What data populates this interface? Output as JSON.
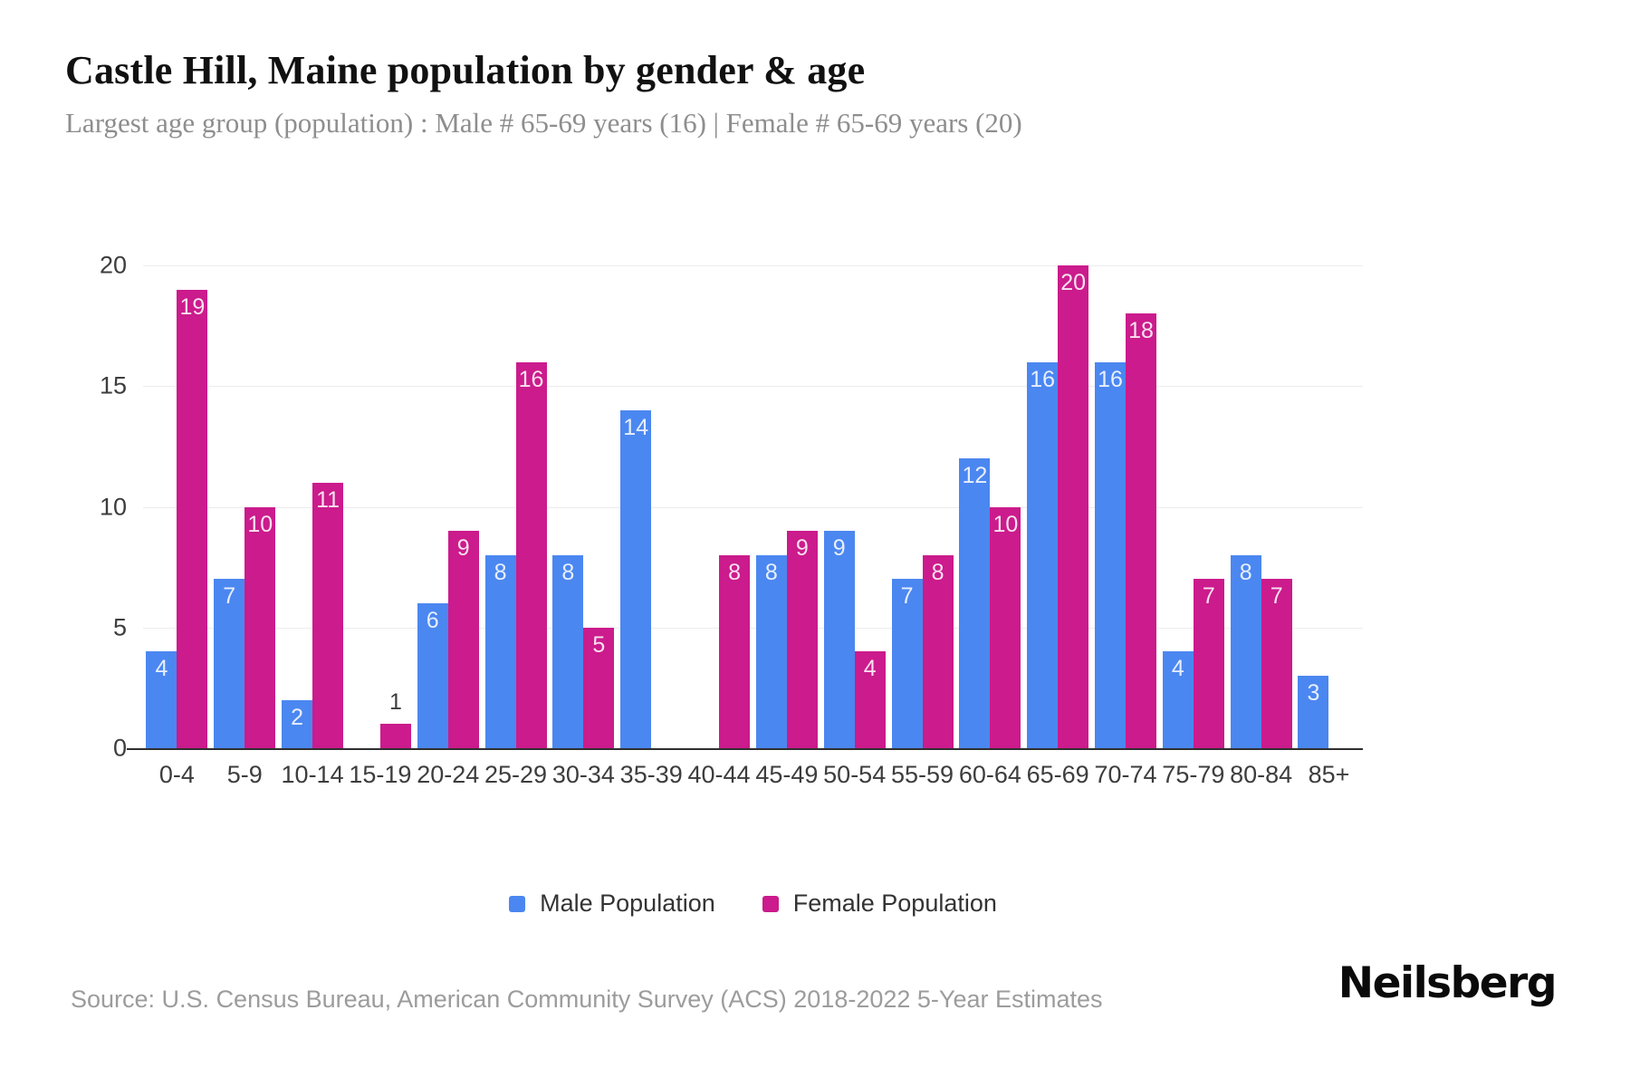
{
  "page": {
    "title": "Castle Hill, Maine population by gender & age",
    "subtitle": "Largest age group (population) : Male # 65-69 years (16) | Female # 65-69 years (20)",
    "source": "Source: U.S. Census Bureau, American Community Survey (ACS) 2018-2022 5-Year Estimates",
    "brand": "Neilsberg"
  },
  "chart_data": {
    "type": "bar",
    "title": "Castle Hill, Maine population by gender & age",
    "categories": [
      "0-4",
      "5-9",
      "10-14",
      "15-19",
      "20-24",
      "25-29",
      "30-34",
      "35-39",
      "40-44",
      "45-49",
      "50-54",
      "55-59",
      "60-64",
      "65-69",
      "70-74",
      "75-79",
      "80-84",
      "85+"
    ],
    "series": [
      {
        "name": "Male Population",
        "color": "#4b87f0",
        "values": [
          4,
          7,
          2,
          0,
          6,
          8,
          8,
          14,
          0,
          8,
          9,
          7,
          12,
          16,
          16,
          4,
          8,
          3
        ]
      },
      {
        "name": "Female Population",
        "color": "#cb1b8c",
        "values": [
          19,
          10,
          11,
          1,
          9,
          16,
          5,
          0,
          8,
          9,
          4,
          8,
          10,
          20,
          18,
          7,
          7,
          0
        ]
      }
    ],
    "xlabel": "",
    "ylabel": "",
    "ylim": [
      0,
      20
    ],
    "yticks": [
      0,
      5,
      10,
      15,
      20
    ],
    "grid": true,
    "legend_position": "bottom",
    "bar_label_color": "rgba(255,255,255,0.87)",
    "small_bar_label_color": "#3d3d3d"
  }
}
